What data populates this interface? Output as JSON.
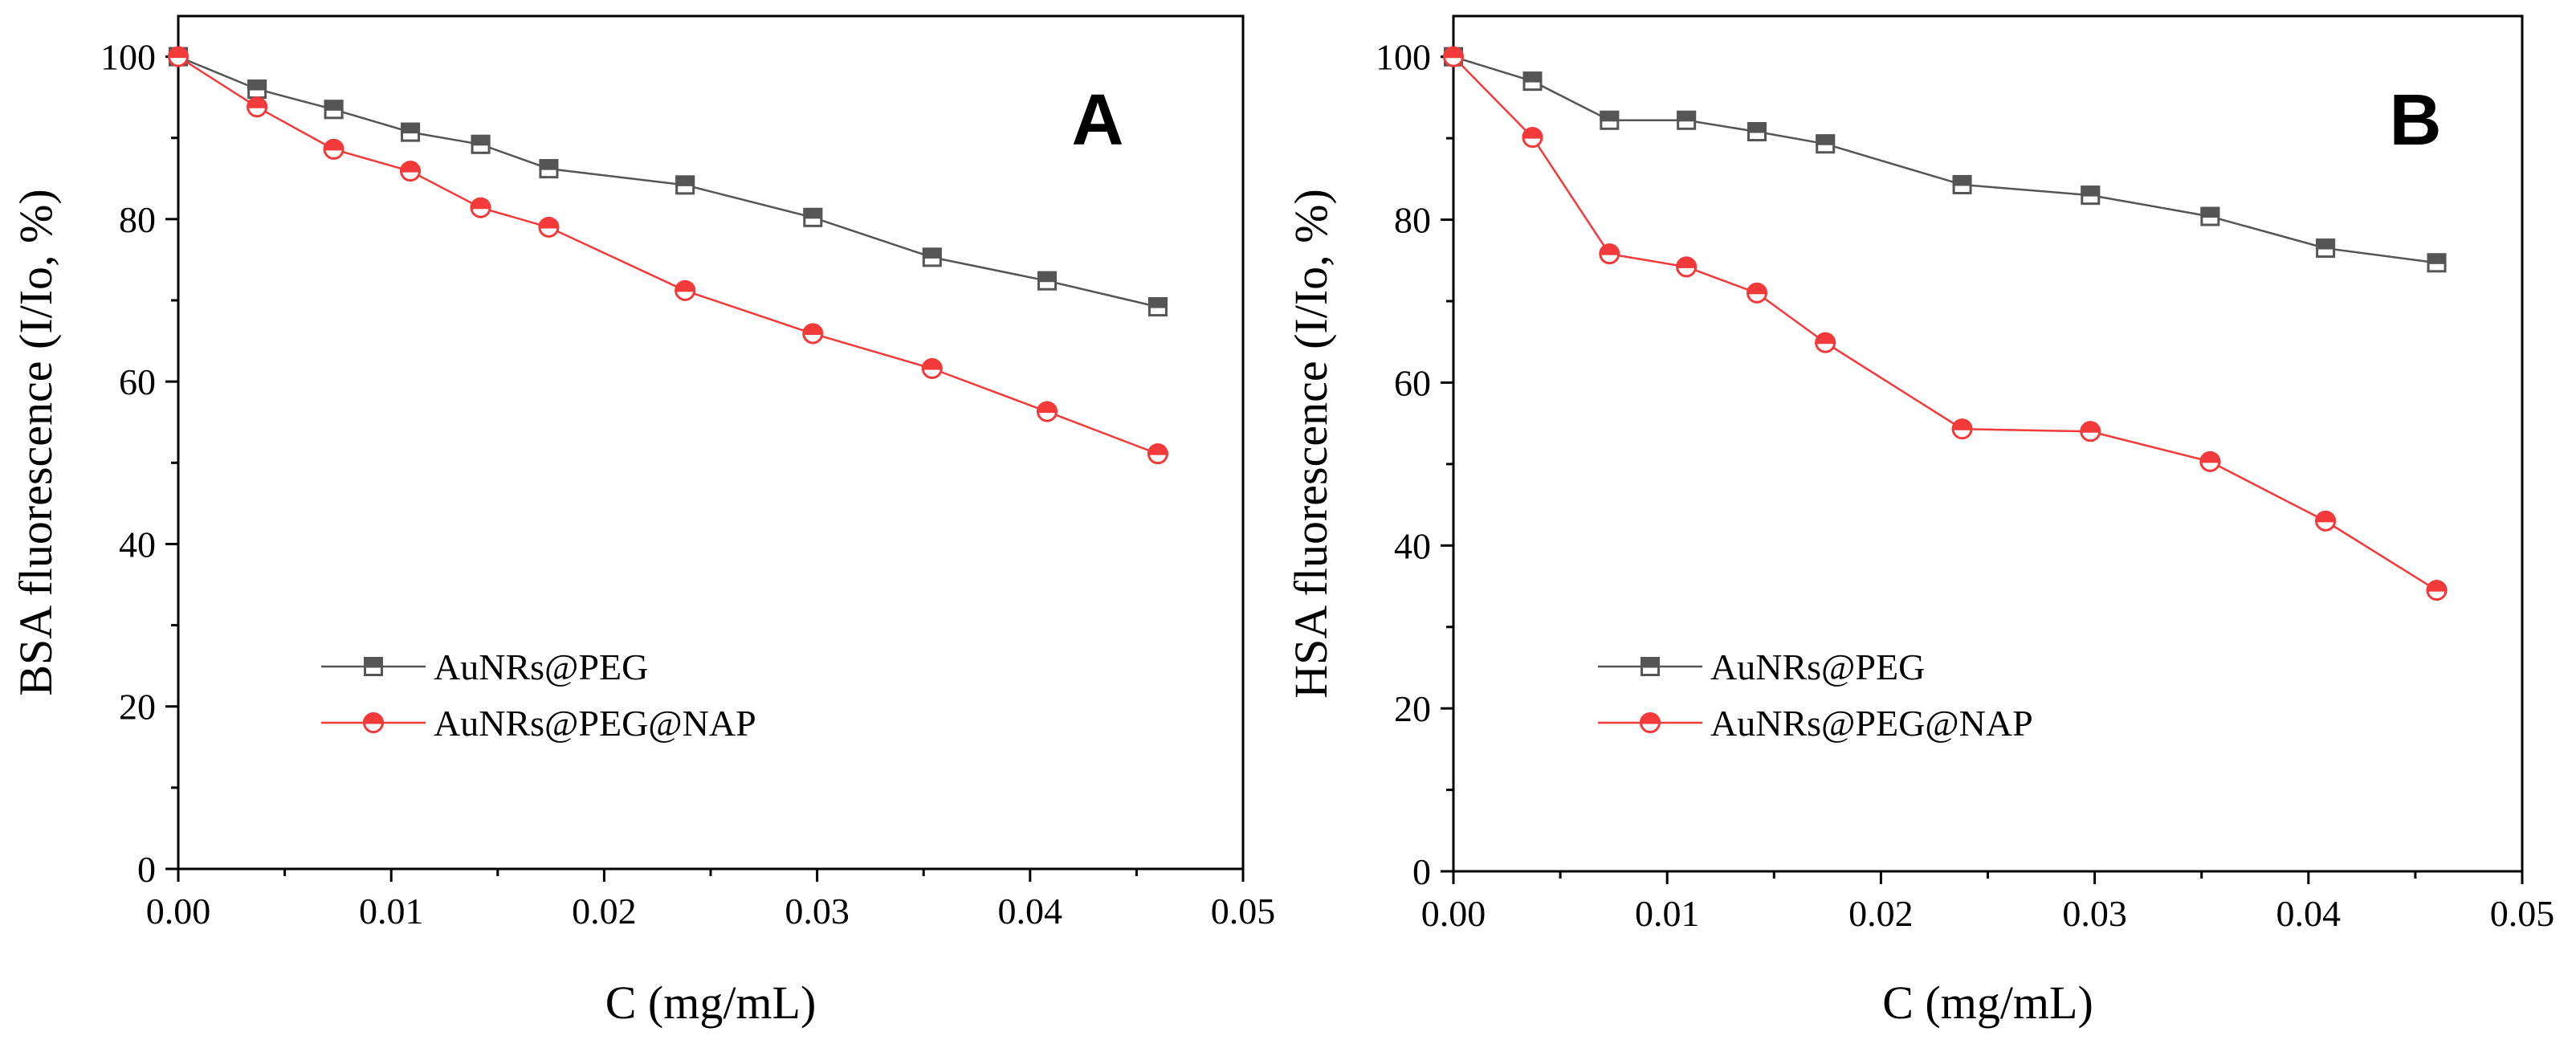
{
  "chart_data": [
    {
      "type": "line",
      "panel_label": "A",
      "xlabel": "C (mg/mL)",
      "ylabel": "BSA fluorescence (I/Io, %)",
      "xlim": [
        0.0,
        0.05
      ],
      "ylim": [
        0,
        105
      ],
      "x_ticks": [
        0.0,
        0.01,
        0.02,
        0.03,
        0.04,
        0.05
      ],
      "x_tick_labels": [
        "0.00",
        "0.01",
        "0.02",
        "0.03",
        "0.04",
        "0.05"
      ],
      "y_ticks": [
        0,
        20,
        40,
        60,
        80,
        100
      ],
      "y_tick_labels": [
        "0",
        "20",
        "40",
        "60",
        "80",
        "100"
      ],
      "legend_position": "lower-left",
      "series": [
        {
          "name": "AuNRs@PEG",
          "color": "#555555",
          "marker": "half-filled-square",
          "x": [
            0.0,
            0.0037,
            0.0073,
            0.0109,
            0.0142,
            0.0174,
            0.0238,
            0.0298,
            0.0354,
            0.0408,
            0.046
          ],
          "values": [
            100,
            96,
            93.5,
            90.7,
            89.2,
            86.2,
            84.2,
            80.2,
            75.3,
            72.4,
            69.2
          ]
        },
        {
          "name": "AuNRs@PEG@NAP",
          "color": "#f23a3a",
          "marker": "half-filled-circle",
          "x": [
            0.0,
            0.0037,
            0.0073,
            0.0109,
            0.0142,
            0.0174,
            0.0238,
            0.0298,
            0.0354,
            0.0408,
            0.046
          ],
          "values": [
            100,
            93.8,
            88.6,
            85.9,
            81.4,
            79.0,
            71.2,
            65.9,
            61.6,
            56.3,
            51.1
          ]
        }
      ]
    },
    {
      "type": "line",
      "panel_label": "B",
      "xlabel": "C (mg/mL)",
      "ylabel": "HSA fluorescence (I/Io, %)",
      "xlim": [
        0.0,
        0.05
      ],
      "ylim": [
        0,
        105
      ],
      "x_ticks": [
        0.0,
        0.01,
        0.02,
        0.03,
        0.04,
        0.05
      ],
      "x_tick_labels": [
        "0.00",
        "0.01",
        "0.02",
        "0.03",
        "0.04",
        "0.05"
      ],
      "y_ticks": [
        0,
        20,
        40,
        60,
        80,
        100
      ],
      "y_tick_labels": [
        "0",
        "20",
        "40",
        "60",
        "80",
        "100"
      ],
      "legend_position": "lower-left",
      "series": [
        {
          "name": "AuNRs@PEG",
          "color": "#555555",
          "marker": "half-filled-square",
          "x": [
            0.0,
            0.0037,
            0.0073,
            0.0109,
            0.0142,
            0.0174,
            0.0238,
            0.0298,
            0.0354,
            0.0408,
            0.046
          ],
          "values": [
            100,
            97,
            92.2,
            92.2,
            90.8,
            89.3,
            84.3,
            83.0,
            80.4,
            76.5,
            74.7
          ]
        },
        {
          "name": "AuNRs@PEG@NAP",
          "color": "#f23a3a",
          "marker": "half-filled-circle",
          "x": [
            0.0,
            0.0037,
            0.0073,
            0.0109,
            0.0142,
            0.0174,
            0.0238,
            0.0298,
            0.0354,
            0.0408,
            0.046
          ],
          "values": [
            100,
            90.1,
            75.8,
            74.2,
            71.0,
            64.9,
            54.3,
            54.0,
            50.3,
            43.0,
            34.5
          ]
        }
      ]
    }
  ]
}
